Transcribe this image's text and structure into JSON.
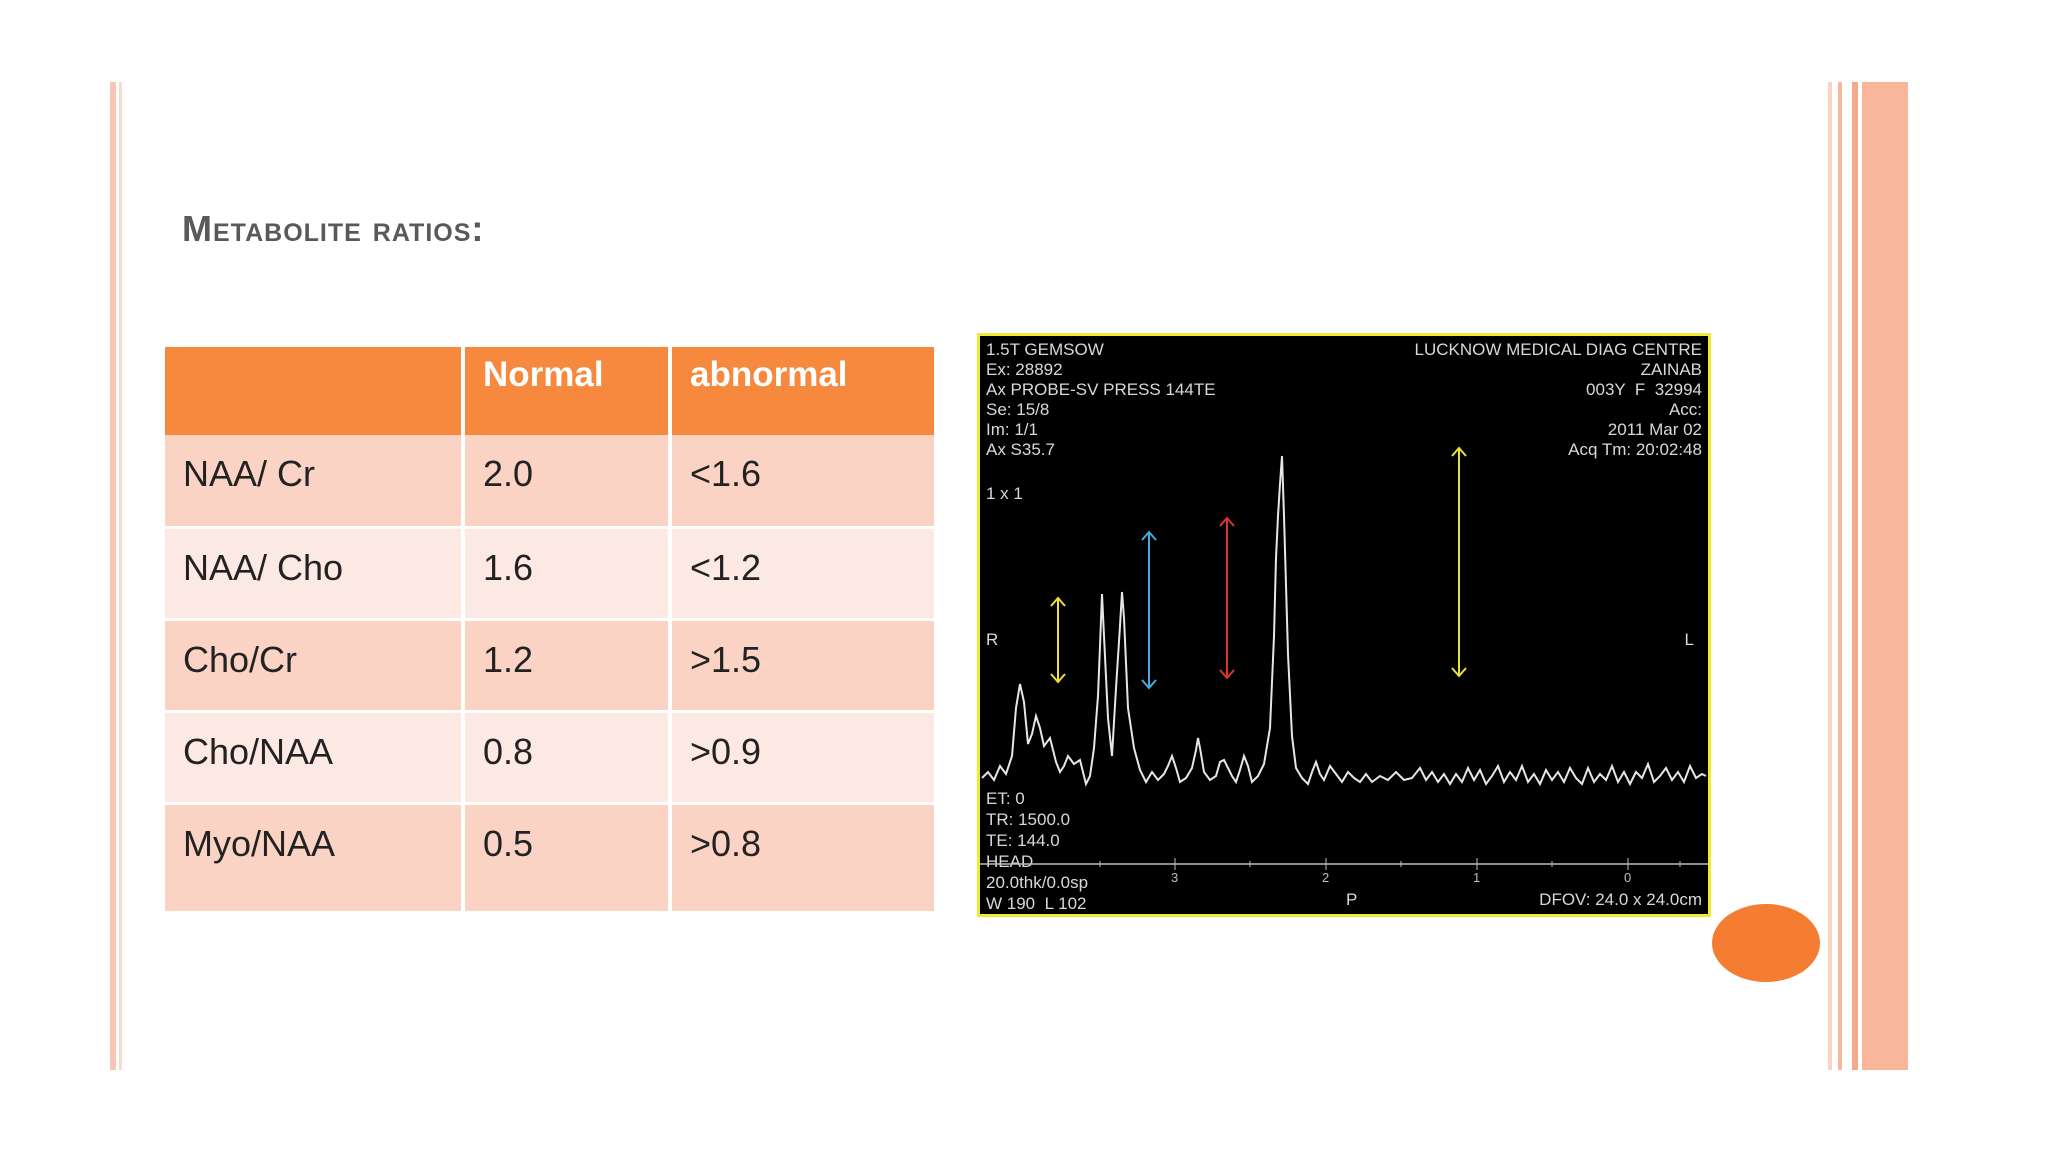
{
  "slide": {
    "title": "Metabolite ratios:",
    "accent_color": "#f6893e",
    "border_color": "#f8b8a0"
  },
  "table": {
    "headers": [
      "",
      "Normal",
      "abnormal"
    ],
    "rows": [
      [
        "NAA/ Cr",
        "2.0",
        "<1.6"
      ],
      [
        "NAA/ Cho",
        "1.6",
        "<1.2"
      ],
      [
        "Cho/Cr",
        "1.2",
        ">1.5"
      ],
      [
        "Cho/NAA",
        "0.8",
        ">0.9"
      ],
      [
        "Myo/NAA",
        "0.5",
        ">0.8"
      ]
    ]
  },
  "spectrum": {
    "top_left": [
      "1.5T GEMSOW",
      "Ex: 28892",
      "Ax PROBE-SV PRESS 144TE",
      "Se: 15/8",
      "Im: 1/1",
      "Ax S35.7"
    ],
    "top_right": [
      "LUCKNOW MEDICAL DIAG CENTRE",
      "ZAINAB",
      "003Y  F  32994",
      "Acc:",
      "2011 Mar 02",
      "Acq Tm: 20:02:48"
    ],
    "voxel": "1 x 1",
    "left_marker": "R",
    "right_marker": "L",
    "bottom_left": [
      "ET: 0",
      "TR: 1500.0",
      "TE: 144.0",
      "HEAD",
      "20.0thk/0.0sp",
      "W 190  L 102"
    ],
    "bottom_center": "P",
    "bottom_right": "DFOV: 24.0 x 24.0cm",
    "ppm_ticks": [
      "3",
      "2",
      "1",
      "0"
    ],
    "arrow_colors": [
      "#e8e23a",
      "#4aa8e0",
      "#e03030",
      "#e8e23a"
    ]
  }
}
